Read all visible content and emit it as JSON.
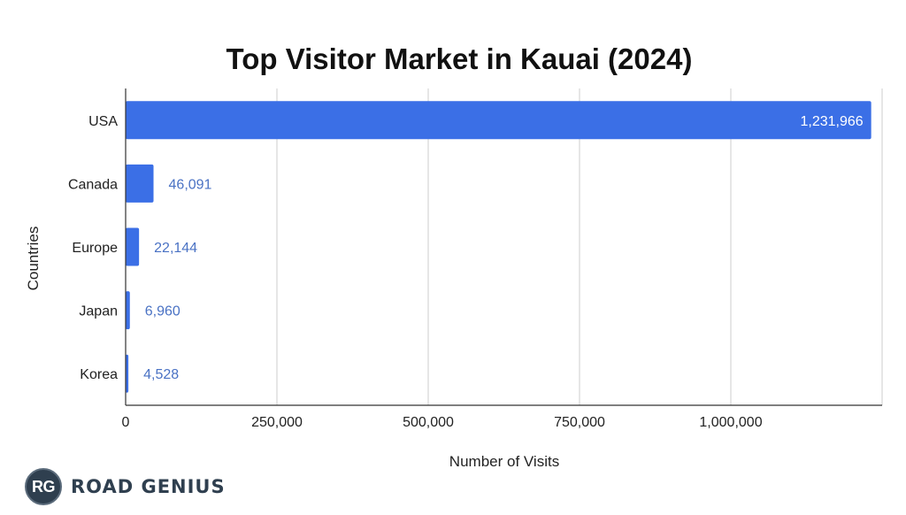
{
  "chart_data": {
    "type": "bar",
    "orientation": "horizontal",
    "title": "Top Visitor Market in Kauai (2024)",
    "xlabel": "Number of Visits",
    "ylabel": "Countries",
    "categories": [
      "USA",
      "Canada",
      "Europe",
      "Japan",
      "Korea"
    ],
    "values": [
      1231966,
      46091,
      22144,
      6960,
      4528
    ],
    "data_labels": [
      "1,231,966",
      "46,091",
      "22,144",
      "6,960",
      "4,528"
    ],
    "xticks": [
      0,
      250000,
      500000,
      750000,
      1000000
    ],
    "xtick_labels": [
      "0",
      "250,000",
      "500,000",
      "750,000",
      "1,000,000"
    ],
    "xlim": [
      0,
      1250000
    ],
    "grid": true,
    "bar_color": "#3b6fe6",
    "label_color_outside": "#4a72c4",
    "label_color_inside": "#ffffff"
  },
  "brand": {
    "logo_text": "RG",
    "name": "ROAD GENIUS"
  }
}
